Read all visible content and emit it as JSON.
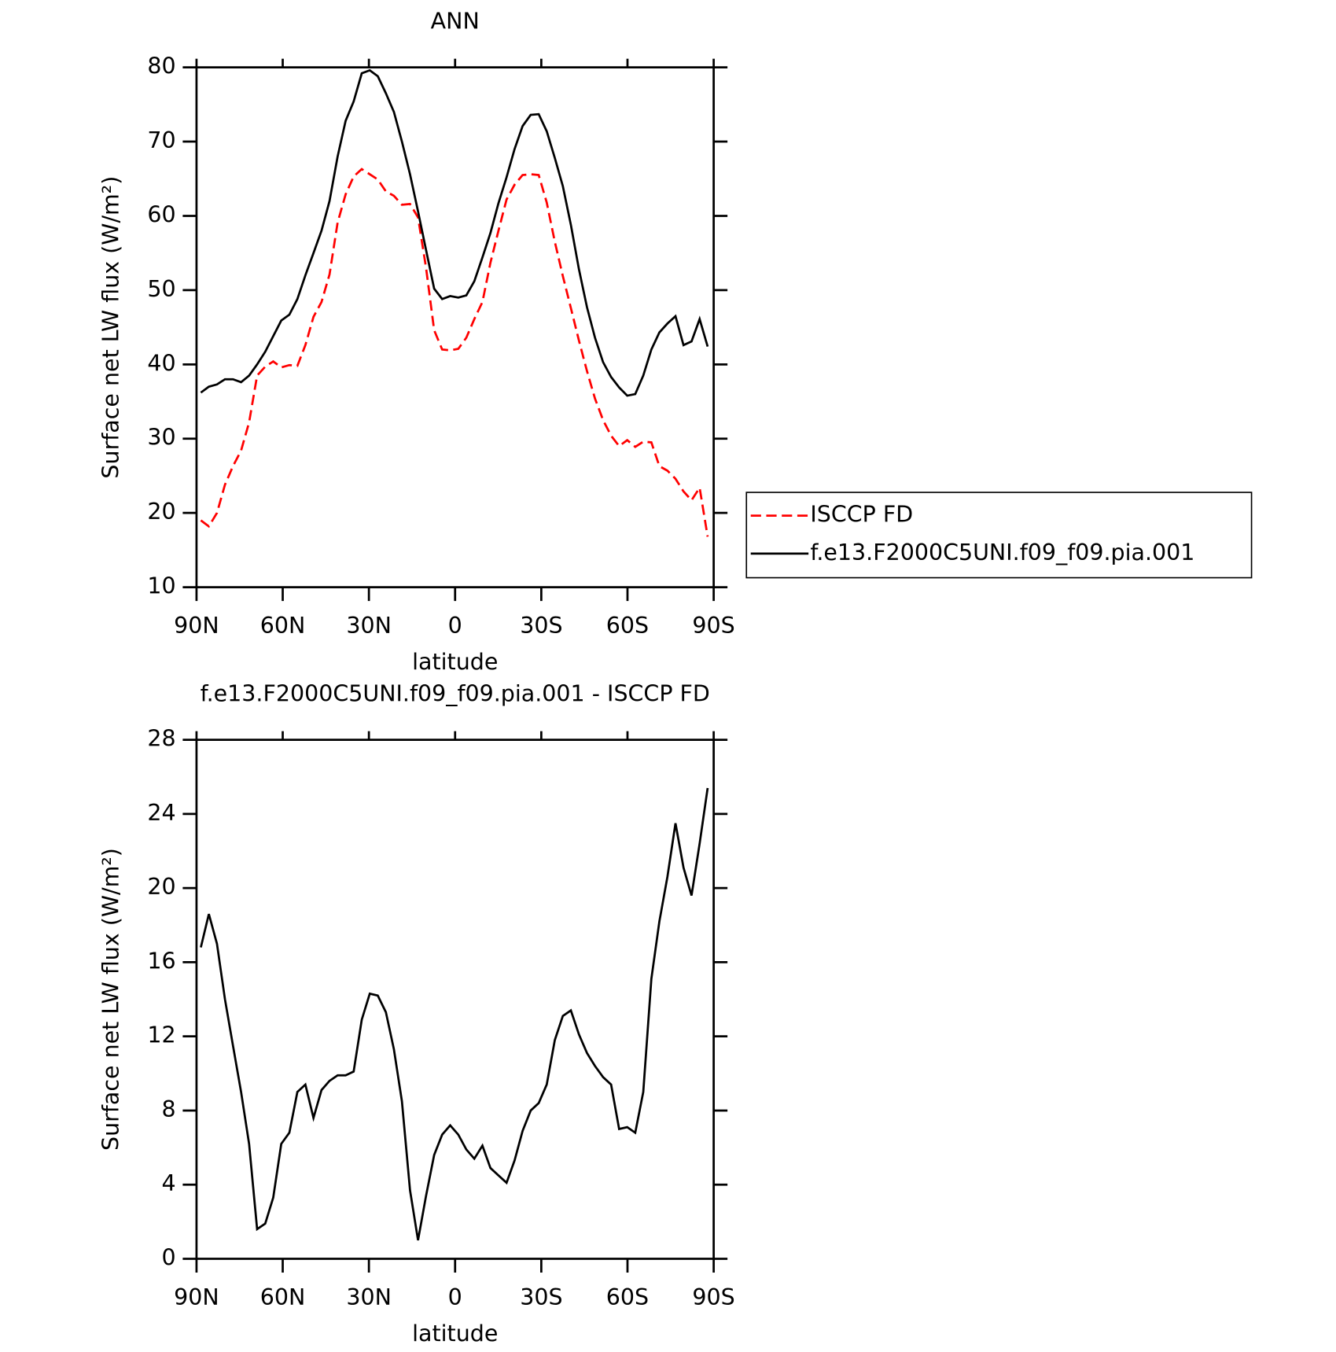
{
  "chart_data": [
    {
      "type": "line",
      "title": "ANN",
      "xlabel": "latitude",
      "ylabel": "Surface net LW flux (W/m²)",
      "x": [
        88.5,
        85.7,
        82.9,
        80.1,
        77.3,
        74.5,
        71.7,
        68.9,
        66.1,
        63.3,
        60.5,
        57.7,
        54.9,
        52.1,
        49.3,
        46.5,
        43.7,
        40.9,
        38.1,
        35.3,
        32.5,
        29.7,
        26.9,
        24.1,
        21.3,
        18.5,
        15.7,
        12.9,
        10.1,
        7.3,
        4.5,
        1.7,
        -1.1,
        -3.9,
        -6.7,
        -9.5,
        -12.3,
        -15.1,
        -17.9,
        -20.7,
        -23.5,
        -26.3,
        -29.1,
        -31.9,
        -34.7,
        -37.5,
        -40.3,
        -43.1,
        -45.9,
        -48.7,
        -51.5,
        -54.3,
        -57.1,
        -59.9,
        -62.7,
        -65.5,
        -68.3,
        -71.1,
        -73.9,
        -76.7,
        -79.5,
        -82.3,
        -85.1,
        -87.9
      ],
      "series": [
        {
          "name": "ISCCP FD",
          "color": "#ff0000",
          "dash": "dashed",
          "values": [
            19,
            18.2,
            20,
            23.8,
            26.3,
            28.4,
            32.2,
            38.5,
            39.7,
            40.4,
            39.6,
            39.9,
            39.8,
            42.6,
            46.4,
            48.4,
            52.1,
            59.1,
            62.9,
            65.3,
            66.3,
            65.6,
            64.9,
            63.3,
            62.7,
            61.5,
            61.6,
            59.8,
            53,
            44.6,
            42,
            41.9,
            42.1,
            43.6,
            46.1,
            48.4,
            53.7,
            58,
            62.2,
            64.2,
            65.5,
            65.6,
            65.5,
            61.8,
            56.5,
            51.9,
            47.6,
            43.2,
            39.1,
            35.4,
            32.5,
            30.4,
            29,
            29.8,
            28.9,
            29.6,
            29.5,
            26.3,
            25.7,
            24.6,
            22.9,
            21.7,
            23.4,
            16.8
          ]
        },
        {
          "name": "f.e13.F2000C5UNI.f09_f09.pia.001",
          "color": "#000000",
          "dash": "solid",
          "values": [
            36.2,
            37,
            37.3,
            38,
            38,
            37.6,
            38.5,
            40,
            41.7,
            43.8,
            45.9,
            46.7,
            48.8,
            52,
            55,
            58,
            62,
            68,
            72.8,
            75.4,
            79.2,
            79.6,
            78.8,
            76.5,
            74,
            70,
            65.6,
            60.6,
            55.4,
            50.2,
            48.8,
            49.2,
            49,
            49.3,
            51.2,
            54.4,
            57.7,
            61.7,
            65.2,
            69,
            72.1,
            73.6,
            73.7,
            71.4,
            67.8,
            64,
            58.8,
            52.8,
            47.7,
            43.6,
            40.3,
            38.3,
            36.9,
            35.8,
            36,
            38.5,
            42,
            44.3,
            45.5,
            46.5,
            42.6,
            43.1,
            46.1,
            42.4
          ]
        }
      ],
      "xlim": [
        90,
        -90
      ],
      "xticks": [
        {
          "value": 90,
          "label": "90N"
        },
        {
          "value": 60,
          "label": "60N"
        },
        {
          "value": 30,
          "label": "30N"
        },
        0,
        {
          "value": -30,
          "label": "30S"
        },
        {
          "value": -60,
          "label": "60S"
        },
        {
          "value": -90,
          "label": "90S"
        }
      ],
      "ylim": [
        10,
        80
      ],
      "yticks": [
        10,
        20,
        30,
        40,
        50,
        60,
        70,
        80
      ],
      "legend": "right"
    },
    {
      "type": "line",
      "title": "f.e13.F2000C5UNI.f09_f09.pia.001 - ISCCP FD",
      "xlabel": "latitude",
      "ylabel": "Surface net LW flux (W/m²)",
      "x": [
        88.5,
        85.7,
        82.9,
        80.1,
        77.3,
        74.5,
        71.7,
        68.9,
        66.1,
        63.3,
        60.5,
        57.7,
        54.9,
        52.1,
        49.3,
        46.5,
        43.7,
        40.9,
        38.1,
        35.3,
        32.5,
        29.7,
        26.9,
        24.1,
        21.3,
        18.5,
        15.7,
        12.9,
        10.1,
        7.3,
        4.5,
        1.7,
        -1.1,
        -3.9,
        -6.7,
        -9.5,
        -12.3,
        -15.1,
        -17.9,
        -20.7,
        -23.5,
        -26.3,
        -29.1,
        -31.9,
        -34.7,
        -37.5,
        -40.3,
        -43.1,
        -45.9,
        -48.7,
        -51.5,
        -54.3,
        -57.1,
        -59.9,
        -62.7,
        -65.5,
        -68.3,
        -71.1,
        -73.9,
        -76.7,
        -79.5,
        -82.3,
        -85.1,
        -87.9
      ],
      "series": [
        {
          "color": "#000000",
          "dash": "solid",
          "values": [
            16.8,
            18.6,
            17,
            14,
            11.5,
            9,
            6.2,
            1.6,
            1.9,
            3.3,
            6.2,
            6.8,
            9,
            9.4,
            7.6,
            9.1,
            9.6,
            9.9,
            9.9,
            10.1,
            12.9,
            14.3,
            14.2,
            13.3,
            11.3,
            8.5,
            3.7,
            1,
            3.4,
            5.6,
            6.7,
            7.2,
            6.7,
            5.9,
            5.4,
            6.1,
            4.9,
            4.5,
            4.1,
            5.3,
            6.9,
            8,
            8.4,
            9.4,
            11.8,
            13.1,
            13.4,
            12.1,
            11.1,
            10.4,
            9.8,
            9.4,
            7,
            7.1,
            6.8,
            9,
            15.1,
            18.2,
            20.6,
            23.5,
            21.1,
            19.6,
            22.4,
            25.4
          ]
        }
      ],
      "xlim": [
        90,
        -90
      ],
      "xticks": [
        {
          "value": 90,
          "label": "90N"
        },
        {
          "value": 60,
          "label": "60N"
        },
        {
          "value": 30,
          "label": "30N"
        },
        0,
        {
          "value": -30,
          "label": "30S"
        },
        {
          "value": -60,
          "label": "60S"
        },
        {
          "value": -90,
          "label": "90S"
        }
      ],
      "ylim": [
        0,
        28
      ],
      "yticks": [
        0,
        4,
        8,
        12,
        16,
        20,
        24,
        28
      ]
    }
  ]
}
